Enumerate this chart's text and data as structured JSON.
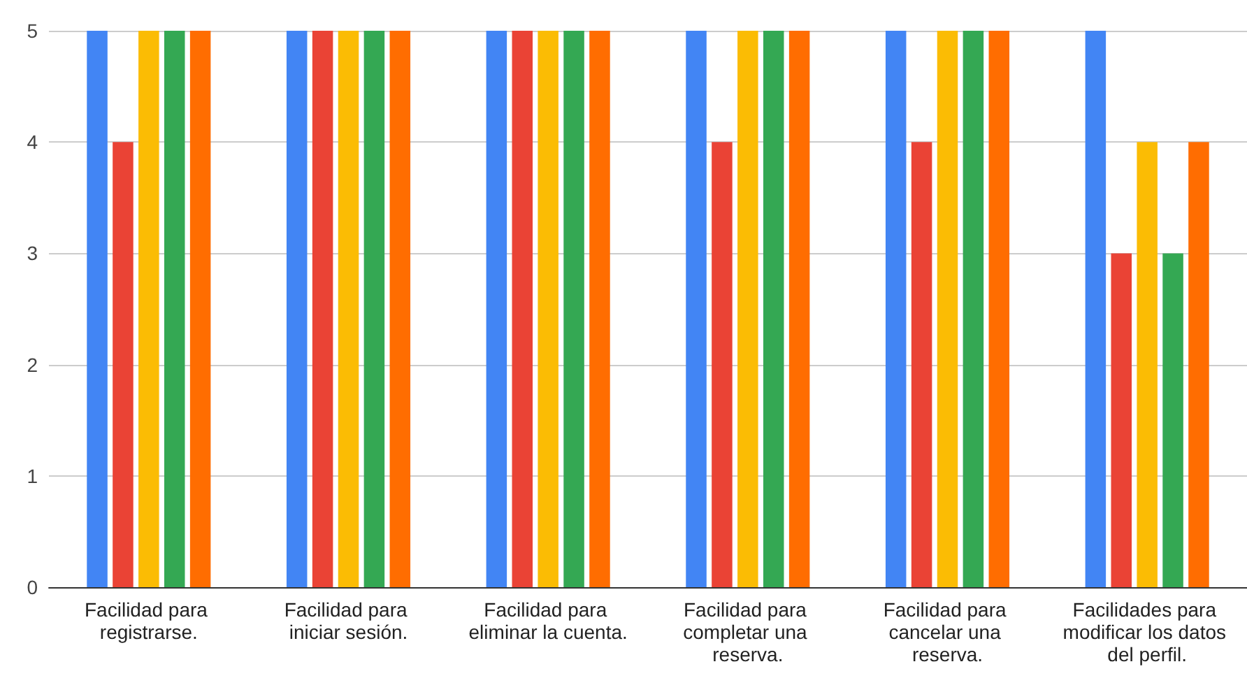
{
  "chart_data": {
    "type": "bar",
    "categories": [
      "Facilidad para registrarse.",
      "Facilidad para iniciar sesión.",
      "Facilidad para eliminar la cuenta.",
      "Facilidad para completar una reserva.",
      "Facilidad para cancelar una reserva.",
      "Facilidades para modificar los datos del perfil."
    ],
    "series": [
      {
        "color": "#4285f4",
        "values": [
          5,
          5,
          5,
          5,
          5,
          5
        ]
      },
      {
        "color": "#ea4335",
        "values": [
          4,
          5,
          5,
          4,
          4,
          3
        ]
      },
      {
        "color": "#fbbc04",
        "values": [
          5,
          5,
          5,
          5,
          5,
          4
        ]
      },
      {
        "color": "#34a853",
        "values": [
          5,
          5,
          5,
          5,
          5,
          3
        ]
      },
      {
        "color": "#ff6d01",
        "values": [
          5,
          5,
          5,
          5,
          5,
          4
        ]
      }
    ],
    "ylim": [
      0,
      5
    ],
    "yticks": [
      0,
      1,
      2,
      3,
      4,
      5
    ],
    "grid": "y"
  }
}
